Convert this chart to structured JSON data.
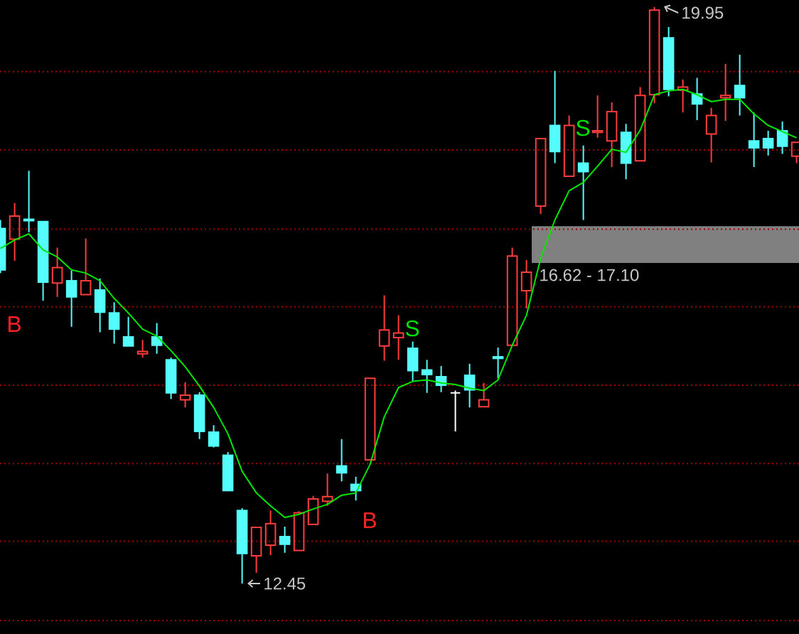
{
  "chart_data": {
    "type": "candlestick",
    "categories": [
      null,
      null,
      null,
      null,
      null,
      null,
      null,
      null,
      null,
      null,
      null,
      null,
      null,
      null,
      null,
      null,
      null,
      null,
      null,
      null,
      null,
      null,
      null,
      null,
      null,
      null,
      null,
      null,
      null,
      null,
      null,
      null,
      null,
      null,
      null,
      null,
      null,
      null,
      null,
      null,
      null,
      null,
      null,
      null,
      null,
      null,
      null,
      null,
      null,
      null,
      null,
      null,
      null,
      null,
      null,
      null,
      null
    ],
    "ohlc": [
      [
        17.07,
        17.18,
        16.49,
        16.53
      ],
      [
        16.93,
        17.4,
        16.65,
        17.23
      ],
      [
        17.19,
        17.82,
        17.02,
        17.17
      ],
      [
        17.16,
        17.16,
        16.13,
        16.37
      ],
      [
        16.36,
        16.82,
        16.18,
        16.56
      ],
      [
        16.39,
        16.52,
        15.79,
        16.18
      ],
      [
        16.21,
        16.94,
        16.21,
        16.39
      ],
      [
        16.27,
        16.42,
        15.72,
        15.98
      ],
      [
        15.97,
        16.11,
        15.57,
        15.76
      ],
      [
        15.66,
        15.92,
        15.54,
        15.54
      ],
      [
        15.44,
        15.62,
        15.39,
        15.47
      ],
      [
        15.66,
        15.84,
        15.44,
        15.55
      ],
      [
        15.36,
        15.39,
        14.85,
        14.93
      ],
      [
        14.84,
        15.07,
        14.74,
        14.9
      ],
      [
        14.9,
        14.94,
        14.33,
        14.43
      ],
      [
        14.42,
        14.51,
        14.22,
        14.24
      ],
      [
        14.12,
        14.16,
        13.65,
        13.66
      ],
      [
        13.4,
        13.43,
        12.45,
        12.84
      ],
      [
        12.81,
        13.18,
        12.59,
        13.18
      ],
      [
        12.95,
        13.4,
        12.82,
        13.23
      ],
      [
        13.06,
        13.19,
        12.85,
        12.96
      ],
      [
        12.88,
        13.39,
        12.88,
        13.37
      ],
      [
        13.22,
        13.59,
        13.22,
        13.55
      ],
      [
        13.52,
        13.88,
        13.46,
        13.58
      ],
      [
        13.98,
        14.33,
        13.78,
        13.89
      ],
      [
        13.74,
        13.84,
        13.53,
        13.66
      ],
      [
        14.06,
        15.12,
        14.06,
        15.12
      ],
      [
        15.54,
        16.2,
        15.35,
        15.75
      ],
      [
        15.65,
        15.94,
        15.36,
        15.71
      ],
      [
        15.51,
        15.6,
        15.08,
        15.22
      ],
      [
        15.23,
        15.36,
        14.93,
        15.17
      ],
      [
        15.14,
        15.28,
        14.94,
        15.03
      ],
      [
        14.93,
        14.96,
        14.43,
        14.93
      ],
      [
        15.16,
        15.31,
        14.74,
        14.97
      ],
      [
        14.75,
        15.06,
        14.75,
        14.84
      ],
      [
        15.4,
        15.52,
        15.12,
        15.38
      ],
      [
        15.55,
        16.82,
        15.55,
        16.71
      ],
      [
        16.26,
        16.66,
        16.03,
        16.5
      ],
      [
        17.36,
        18.24,
        17.26,
        18.24
      ],
      [
        18.41,
        19.12,
        17.92,
        18.07
      ],
      [
        17.75,
        18.54,
        17.75,
        18.41
      ],
      [
        17.92,
        18.15,
        17.18,
        17.81
      ],
      [
        18.32,
        18.8,
        18.25,
        18.34
      ],
      [
        18.21,
        18.71,
        17.87,
        18.59
      ],
      [
        18.32,
        18.43,
        17.71,
        17.92
      ],
      [
        17.95,
        18.91,
        17.95,
        18.8
      ],
      [
        18.81,
        19.95,
        18.7,
        19.91
      ],
      [
        19.55,
        19.69,
        18.79,
        18.88
      ],
      [
        18.87,
        19.01,
        18.58,
        18.91
      ],
      [
        18.82,
        19.03,
        18.48,
        18.69
      ],
      [
        18.3,
        18.64,
        17.93,
        18.54
      ],
      [
        18.77,
        19.21,
        18.47,
        18.8
      ],
      [
        18.93,
        19.33,
        18.54,
        18.77
      ],
      [
        18.21,
        18.58,
        17.87,
        18.12
      ],
      [
        18.24,
        18.34,
        18.02,
        18.12
      ],
      [
        18.34,
        18.46,
        18.04,
        18.14
      ],
      [
        18.01,
        18.19,
        17.92,
        18.19
      ]
    ],
    "colors": [
      "#54fcfc",
      "#ff3c3c",
      "#54fcfc",
      "#54fcfc",
      "#ff3c3c",
      "#54fcfc",
      "#ff3c3c",
      "#54fcfc",
      "#54fcfc",
      "#54fcfc",
      "#ff3c3c",
      "#54fcfc",
      "#54fcfc",
      "#ff3c3c",
      "#54fcfc",
      "#54fcfc",
      "#54fcfc",
      "#54fcfc",
      "#ff3c3c",
      "#ff3c3c",
      "#54fcfc",
      "#ff3c3c",
      "#ff3c3c",
      "#ff3c3c",
      "#54fcfc",
      "#54fcfc",
      "#ff3c3c",
      "#ff3c3c",
      "#ff3c3c",
      "#54fcfc",
      "#54fcfc",
      "#54fcfc",
      "#ffffff",
      "#54fcfc",
      "#ff3c3c",
      "#54fcfc",
      "#ff3c3c",
      "#ff3c3c",
      "#ff3c3c",
      "#54fcfc",
      "#ff3c3c",
      "#54fcfc",
      "#ff3c3c",
      "#ff3c3c",
      "#54fcfc",
      "#ff3c3c",
      "#ff3c3c",
      "#54fcfc",
      "#ff3c3c",
      "#54fcfc",
      "#ff3c3c",
      "#ff3c3c",
      "#54fcfc",
      "#54fcfc",
      "#54fcfc",
      "#54fcfc",
      "#ff3c3c"
    ],
    "series": [
      {
        "type": "line",
        "color": "#00e600",
        "values": [
          16.81,
          16.92,
          17.0,
          16.79,
          16.7,
          16.53,
          16.49,
          16.39,
          16.16,
          15.97,
          15.76,
          15.67,
          15.48,
          15.27,
          15.02,
          14.74,
          14.4,
          13.91,
          13.63,
          13.46,
          13.31,
          13.35,
          13.42,
          13.48,
          13.6,
          13.63,
          14.0,
          14.62,
          15.0,
          15.08,
          15.1,
          15.06,
          15.04,
          14.99,
          14.96,
          15.1,
          15.55,
          15.94,
          16.68,
          17.18,
          17.56,
          17.67,
          17.88,
          18.1,
          18.06,
          18.35,
          18.81,
          18.86,
          18.88,
          18.81,
          18.72,
          18.75,
          18.75,
          18.56,
          18.41,
          18.33,
          18.25
        ]
      }
    ],
    "yticks": [
      {
        "value": 11.97,
        "label": null
      },
      {
        "value": 13.0,
        "label": null
      },
      {
        "value": 14.01,
        "label": null
      },
      {
        "value": 15.03,
        "label": null
      },
      {
        "value": 16.05,
        "label": null
      },
      {
        "value": 17.06,
        "label": null
      },
      {
        "value": 18.09,
        "label": null
      },
      {
        "value": 19.11,
        "label": null
      }
    ],
    "grid": "y",
    "bands": [
      {
        "axis": "y",
        "from": 16.62,
        "to": 17.1,
        "label": "16.62 - 17.10",
        "color": "#808080"
      }
    ],
    "annotations": [
      "19.95",
      "12.45",
      "B",
      "S",
      "B",
      "S"
    ]
  }
}
